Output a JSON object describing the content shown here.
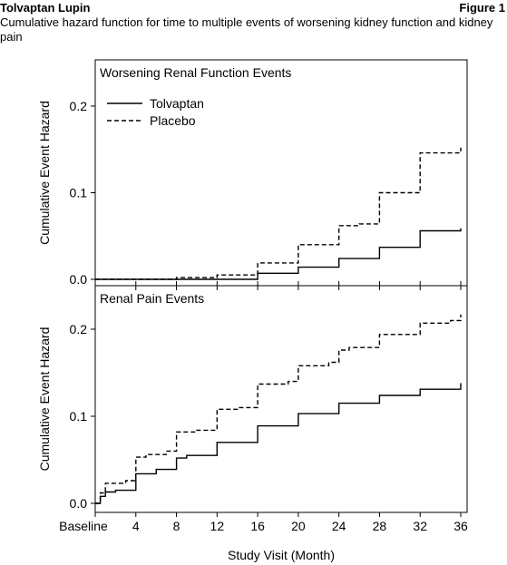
{
  "header": {
    "left": "Tolvaptan Lupin",
    "right": "Figure 1",
    "subtitle": "Cumulative hazard function for time to multiple events of worsening kidney function and kidney pain"
  },
  "chart_data": [
    {
      "type": "line",
      "title": "Worsening Renal Function Events",
      "ylabel": "Cumulative Event Hazard",
      "xlabel": "Study Visit (Month)",
      "xlim": [
        0,
        36
      ],
      "ylim": [
        0,
        0.2
      ],
      "yticks": [
        "0.0",
        "0.1",
        "0.2"
      ],
      "legend_position": "top-left",
      "series": [
        {
          "name": "Tolvaptan",
          "style": "solid",
          "points": [
            [
              0,
              0
            ],
            [
              16,
              0
            ],
            [
              16,
              0.007
            ],
            [
              20,
              0.007
            ],
            [
              20,
              0.014
            ],
            [
              24,
              0.014
            ],
            [
              24,
              0.024
            ],
            [
              28,
              0.024
            ],
            [
              28,
              0.037
            ],
            [
              32,
              0.037
            ],
            [
              32,
              0.056
            ],
            [
              36,
              0.056
            ],
            [
              36,
              0.059
            ]
          ]
        },
        {
          "name": "Placebo",
          "style": "dashed",
          "points": [
            [
              0,
              0
            ],
            [
              8,
              0
            ],
            [
              8,
              0.002
            ],
            [
              12,
              0.002
            ],
            [
              12,
              0.005
            ],
            [
              16,
              0.005
            ],
            [
              16,
              0.019
            ],
            [
              20,
              0.019
            ],
            [
              20,
              0.04
            ],
            [
              24,
              0.04
            ],
            [
              24,
              0.062
            ],
            [
              26,
              0.062
            ],
            [
              26,
              0.064
            ],
            [
              28,
              0.064
            ],
            [
              28,
              0.1
            ],
            [
              32,
              0.1
            ],
            [
              32,
              0.146
            ],
            [
              36,
              0.146
            ],
            [
              36,
              0.152
            ]
          ]
        }
      ]
    },
    {
      "type": "line",
      "title": "Renal Pain Events",
      "ylabel": "Cumulative Event Hazard",
      "xlabel": "Study Visit (Month)",
      "xlim": [
        0,
        36
      ],
      "ylim": [
        0,
        0.2
      ],
      "yticks": [
        "0.0",
        "0.1",
        "0.2"
      ],
      "xticks": [
        "Baseline",
        "4",
        "8",
        "12",
        "16",
        "20",
        "24",
        "28",
        "32",
        "36"
      ],
      "series": [
        {
          "name": "Tolvaptan",
          "style": "solid",
          "points": [
            [
              0,
              0
            ],
            [
              0.5,
              0
            ],
            [
              0.5,
              0.008
            ],
            [
              1,
              0.008
            ],
            [
              1,
              0.013
            ],
            [
              2,
              0.013
            ],
            [
              2,
              0.015
            ],
            [
              4,
              0.015
            ],
            [
              4,
              0.034
            ],
            [
              6,
              0.034
            ],
            [
              6,
              0.039
            ],
            [
              8,
              0.039
            ],
            [
              8,
              0.052
            ],
            [
              9,
              0.052
            ],
            [
              9,
              0.055
            ],
            [
              12,
              0.055
            ],
            [
              12,
              0.07
            ],
            [
              16,
              0.07
            ],
            [
              16,
              0.089
            ],
            [
              20,
              0.089
            ],
            [
              20,
              0.103
            ],
            [
              24,
              0.103
            ],
            [
              24,
              0.115
            ],
            [
              28,
              0.115
            ],
            [
              28,
              0.124
            ],
            [
              32,
              0.124
            ],
            [
              32,
              0.131
            ],
            [
              36,
              0.131
            ],
            [
              36,
              0.138
            ]
          ]
        },
        {
          "name": "Placebo",
          "style": "dashed",
          "points": [
            [
              0,
              0
            ],
            [
              0.5,
              0
            ],
            [
              0.5,
              0.012
            ],
            [
              1,
              0.012
            ],
            [
              1,
              0.023
            ],
            [
              3,
              0.023
            ],
            [
              3,
              0.026
            ],
            [
              4,
              0.026
            ],
            [
              4,
              0.053
            ],
            [
              5,
              0.053
            ],
            [
              5,
              0.056
            ],
            [
              7,
              0.056
            ],
            [
              7,
              0.06
            ],
            [
              8,
              0.06
            ],
            [
              8,
              0.082
            ],
            [
              10,
              0.082
            ],
            [
              10,
              0.084
            ],
            [
              12,
              0.084
            ],
            [
              12,
              0.108
            ],
            [
              14,
              0.108
            ],
            [
              14,
              0.11
            ],
            [
              16,
              0.11
            ],
            [
              16,
              0.137
            ],
            [
              19,
              0.137
            ],
            [
              19,
              0.14
            ],
            [
              20,
              0.14
            ],
            [
              20,
              0.158
            ],
            [
              23,
              0.158
            ],
            [
              23,
              0.162
            ],
            [
              24,
              0.162
            ],
            [
              24,
              0.176
            ],
            [
              25,
              0.176
            ],
            [
              25,
              0.179
            ],
            [
              28,
              0.179
            ],
            [
              28,
              0.194
            ],
            [
              32,
              0.194
            ],
            [
              32,
              0.207
            ],
            [
              35,
              0.207
            ],
            [
              35,
              0.21
            ],
            [
              36,
              0.21
            ],
            [
              36,
              0.217
            ]
          ]
        }
      ]
    }
  ]
}
